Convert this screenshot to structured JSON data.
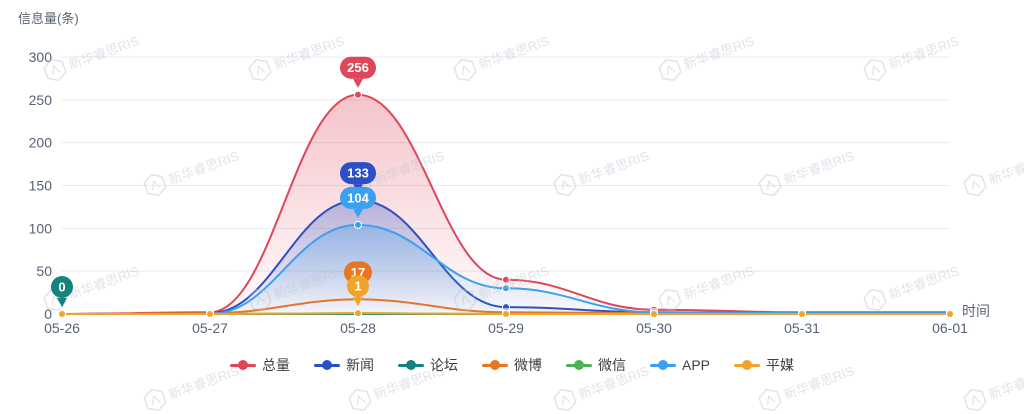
{
  "watermark": {
    "text": "新华睿思RIS",
    "color": "#b9c2cf"
  },
  "chart_data": {
    "type": "line",
    "smooth": true,
    "title": "",
    "xlabel": "时间",
    "ylabel": "信息量(条)",
    "categories": [
      "05-26",
      "05-27",
      "05-28",
      "05-29",
      "05-30",
      "05-31",
      "06-01"
    ],
    "y_ticks": [
      0,
      50,
      100,
      150,
      200,
      250,
      300
    ],
    "ylim": [
      0,
      300
    ],
    "grid": true,
    "legend_position": "bottom",
    "series": [
      {
        "name": "总量",
        "color": "#e0465a",
        "area": true,
        "values": [
          0,
          2,
          256,
          40,
          5,
          2,
          2
        ],
        "labels": [
          {
            "category": "05-28",
            "text": "256"
          }
        ]
      },
      {
        "name": "新闻",
        "color": "#2b50c5",
        "area": true,
        "values": [
          0,
          1,
          133,
          8,
          2,
          1,
          1
        ],
        "labels": [
          {
            "category": "05-28",
            "text": "133"
          }
        ]
      },
      {
        "name": "论坛",
        "color": "#15827d",
        "area": false,
        "values": [
          0,
          0,
          0,
          0,
          0,
          0,
          0
        ],
        "labels": [
          {
            "category": "05-26",
            "text": "0"
          }
        ]
      },
      {
        "name": "微博",
        "color": "#e87621",
        "area": false,
        "values": [
          0,
          1,
          17,
          2,
          1,
          0,
          0
        ],
        "labels": [
          {
            "category": "05-28",
            "text": "17"
          }
        ]
      },
      {
        "name": "微信",
        "color": "#4fb157",
        "area": false,
        "values": [
          0,
          0,
          1,
          0,
          0,
          0,
          0
        ],
        "labels": []
      },
      {
        "name": "APP",
        "color": "#39a1ef",
        "area": true,
        "values": [
          0,
          0,
          104,
          30,
          2,
          1,
          1
        ],
        "labels": [
          {
            "category": "05-28",
            "text": "104"
          }
        ]
      },
      {
        "name": "平媒",
        "color": "#f0a42a",
        "area": false,
        "values": [
          0,
          0,
          1,
          0,
          0,
          0,
          0
        ],
        "labels": [
          {
            "category": "05-28",
            "text": "1"
          }
        ]
      }
    ]
  }
}
